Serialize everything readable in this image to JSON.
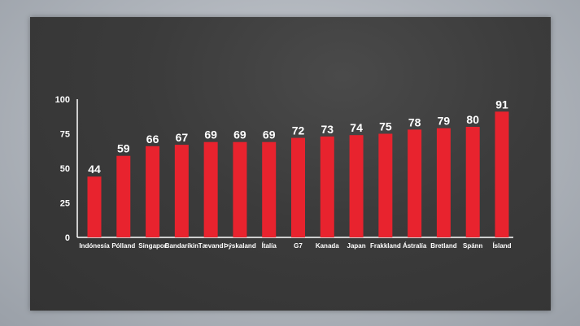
{
  "chart_data": {
    "type": "bar",
    "categories": [
      "Indónesía",
      "Pólland",
      "Singapor",
      "Bandaríkin",
      "Tævand",
      "Þýskaland",
      "Ítalía",
      "G7",
      "Kanada",
      "Japan",
      "Frakkland",
      "Ástralía",
      "Bretland",
      "Spánn",
      "Ísland"
    ],
    "values": [
      44,
      59,
      66,
      67,
      69,
      69,
      69,
      72,
      73,
      74,
      75,
      78,
      79,
      80,
      91
    ],
    "yticks": [
      0,
      25,
      50,
      75,
      100
    ],
    "ylim": [
      0,
      100
    ],
    "bar_color": "#e8232e",
    "grid": false
  }
}
